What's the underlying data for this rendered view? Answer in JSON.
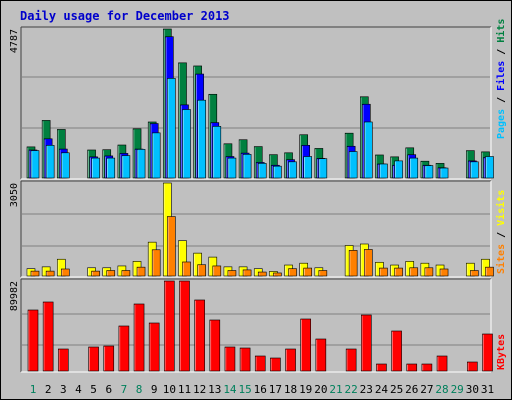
{
  "chart_data": [
    {
      "type": "bar",
      "title": "Daily usage for December 2013",
      "panel": "top",
      "ylabel_parts": [
        "Pages",
        "Files",
        "Hits"
      ],
      "y_max_label": "4787",
      "ylim": [
        0,
        4787
      ],
      "categories": [
        "1",
        "2",
        "3",
        "4",
        "5",
        "6",
        "7",
        "8",
        "9",
        "10",
        "11",
        "12",
        "13",
        "14",
        "15",
        "16",
        "17",
        "18",
        "19",
        "20",
        "21",
        "22",
        "23",
        "24",
        "25",
        "26",
        "27",
        "28",
        "29",
        "30",
        "31"
      ],
      "series": [
        {
          "name": "Hits",
          "values": [
            1000,
            1850,
            1560,
            0,
            900,
            910,
            1060,
            1580,
            1800,
            4787,
            3700,
            3600,
            2690,
            1100,
            1230,
            1010,
            750,
            810,
            1390,
            950,
            0,
            1440,
            2610,
            740,
            680,
            970,
            540,
            470,
            0,
            880,
            840
          ]
        },
        {
          "name": "Files",
          "values": [
            900,
            1260,
            930,
            0,
            680,
            710,
            790,
            930,
            1750,
            4540,
            2350,
            3340,
            1780,
            690,
            800,
            500,
            410,
            590,
            1050,
            630,
            0,
            1020,
            2370,
            450,
            410,
            750,
            410,
            330,
            0,
            550,
            660
          ]
        },
        {
          "name": "Pages",
          "values": [
            880,
            1050,
            810,
            0,
            640,
            640,
            720,
            920,
            1450,
            3200,
            2200,
            2500,
            1660,
            640,
            760,
            470,
            380,
            520,
            690,
            620,
            0,
            850,
            1800,
            450,
            550,
            640,
            400,
            320,
            0,
            520,
            690
          ]
        }
      ]
    },
    {
      "type": "bar",
      "panel": "middle",
      "ylabel_parts": [
        "Sites",
        "Visits"
      ],
      "y_max_label": "3050",
      "ylim": [
        0,
        3050
      ],
      "categories": [
        "1",
        "2",
        "3",
        "4",
        "5",
        "6",
        "7",
        "8",
        "9",
        "10",
        "11",
        "12",
        "13",
        "14",
        "15",
        "16",
        "17",
        "18",
        "19",
        "20",
        "21",
        "22",
        "23",
        "24",
        "25",
        "26",
        "27",
        "28",
        "29",
        "30",
        "31"
      ],
      "series": [
        {
          "name": "Visits",
          "values": [
            240,
            300,
            550,
            0,
            270,
            270,
            330,
            480,
            1110,
            3050,
            1160,
            750,
            620,
            300,
            300,
            240,
            150,
            360,
            420,
            270,
            0,
            1000,
            1050,
            450,
            360,
            480,
            420,
            360,
            0,
            420,
            550
          ]
        },
        {
          "name": "Sites",
          "values": [
            160,
            160,
            230,
            0,
            160,
            180,
            180,
            290,
            860,
            1950,
            460,
            370,
            330,
            180,
            200,
            130,
            100,
            240,
            260,
            180,
            0,
            840,
            870,
            260,
            260,
            270,
            270,
            230,
            0,
            180,
            290
          ]
        }
      ]
    },
    {
      "type": "bar",
      "panel": "bottom",
      "ylabel": "KBytes",
      "y_max_label": "89982",
      "ylim": [
        0,
        89982
      ],
      "categories": [
        "1",
        "2",
        "3",
        "4",
        "5",
        "6",
        "7",
        "8",
        "9",
        "10",
        "11",
        "12",
        "13",
        "14",
        "15",
        "16",
        "17",
        "18",
        "19",
        "20",
        "21",
        "22",
        "23",
        "24",
        "25",
        "26",
        "27",
        "28",
        "29",
        "30",
        "31"
      ],
      "series": [
        {
          "name": "KBytes",
          "values": [
            61000,
            69000,
            22000,
            0,
            24000,
            25000,
            45000,
            67000,
            48000,
            89982,
            89982,
            71000,
            51000,
            24000,
            23000,
            15000,
            13000,
            22000,
            52000,
            32000,
            0,
            22000,
            56000,
            7000,
            40000,
            7000,
            7000,
            15000,
            0,
            9000,
            37000
          ]
        }
      ]
    }
  ],
  "colors": {
    "hits": "#008040",
    "files": "#0000ff",
    "pages": "#00c0ff",
    "visits": "#ffff00",
    "sites": "#ff8000",
    "kbytes": "#ff0000",
    "weekend_label": "#00805c",
    "title": "#0000cc",
    "panel_bg": "#c0c0c0"
  },
  "weekend_days": [
    "1",
    "7",
    "8",
    "14",
    "15",
    "21",
    "22",
    "28",
    "29"
  ]
}
